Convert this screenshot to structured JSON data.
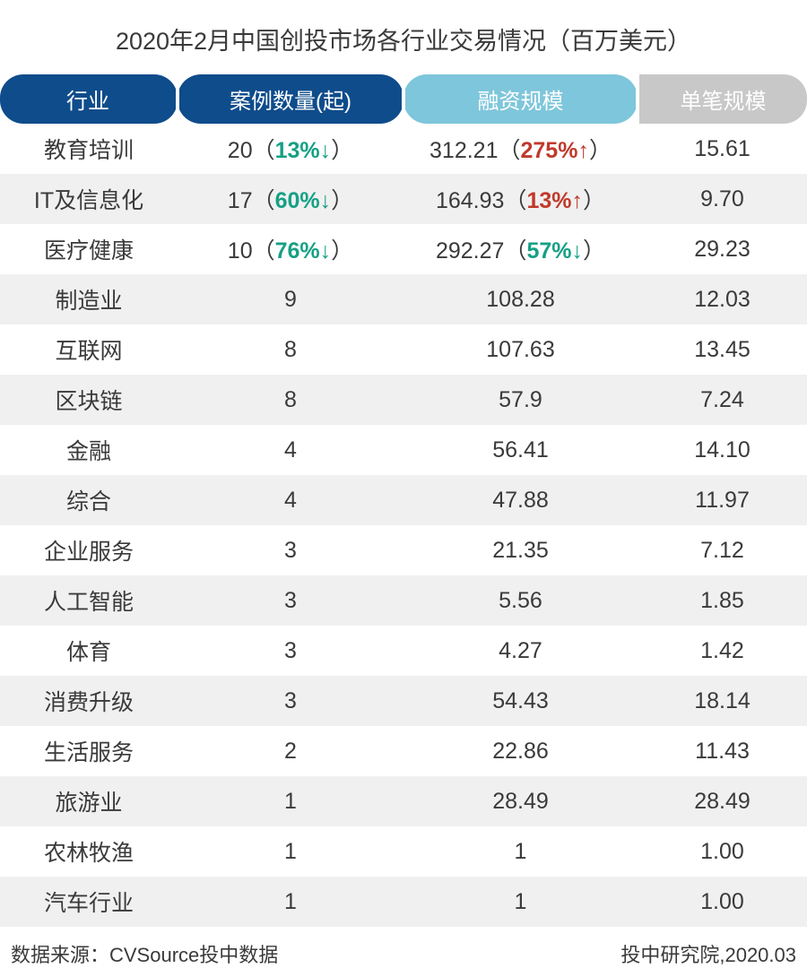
{
  "title": "2020年2月中国创投市场各行业交易情况（百万美元）",
  "columns": [
    {
      "label": "行业",
      "bg": "#0f4c8b",
      "pill": "both"
    },
    {
      "label": "案例数量(起)",
      "bg": "#0f4c8b",
      "pill": "both"
    },
    {
      "label": "融资规模",
      "bg": "#7ec6db",
      "pill": "both"
    },
    {
      "label": "单笔规模",
      "bg": "#c8c8c8",
      "pill": "right"
    }
  ],
  "header_text_color": "#ffffff",
  "header_fontsize": 24,
  "body_fontsize": 25,
  "title_fontsize": 27,
  "colors": {
    "text": "#3a3a3a",
    "stripe": "#f0f0f0",
    "up": "#c0392b",
    "down": "#16a085",
    "background": "#ffffff"
  },
  "column_widths_pct": [
    22,
    28,
    29,
    21
  ],
  "rows": [
    {
      "industry": "教育培训",
      "cases": "20",
      "cases_delta": {
        "pct": "13%",
        "dir": "down"
      },
      "amount": "312.21",
      "amount_delta": {
        "pct": "275%",
        "dir": "up"
      },
      "avg": "15.61"
    },
    {
      "industry": "IT及信息化",
      "cases": "17",
      "cases_delta": {
        "pct": "60%",
        "dir": "down"
      },
      "amount": "164.93",
      "amount_delta": {
        "pct": "13%",
        "dir": "up"
      },
      "avg": "9.70"
    },
    {
      "industry": "医疗健康",
      "cases": "10",
      "cases_delta": {
        "pct": "76%",
        "dir": "down"
      },
      "amount": "292.27",
      "amount_delta": {
        "pct": "57%",
        "dir": "down"
      },
      "avg": "29.23"
    },
    {
      "industry": "制造业",
      "cases": "9",
      "cases_delta": null,
      "amount": "108.28",
      "amount_delta": null,
      "avg": "12.03"
    },
    {
      "industry": "互联网",
      "cases": "8",
      "cases_delta": null,
      "amount": "107.63",
      "amount_delta": null,
      "avg": "13.45"
    },
    {
      "industry": "区块链",
      "cases": "8",
      "cases_delta": null,
      "amount": "57.9",
      "amount_delta": null,
      "avg": "7.24"
    },
    {
      "industry": "金融",
      "cases": "4",
      "cases_delta": null,
      "amount": "56.41",
      "amount_delta": null,
      "avg": "14.10"
    },
    {
      "industry": "综合",
      "cases": "4",
      "cases_delta": null,
      "amount": "47.88",
      "amount_delta": null,
      "avg": "11.97"
    },
    {
      "industry": "企业服务",
      "cases": "3",
      "cases_delta": null,
      "amount": "21.35",
      "amount_delta": null,
      "avg": "7.12"
    },
    {
      "industry": "人工智能",
      "cases": "3",
      "cases_delta": null,
      "amount": "5.56",
      "amount_delta": null,
      "avg": "1.85"
    },
    {
      "industry": "体育",
      "cases": "3",
      "cases_delta": null,
      "amount": "4.27",
      "amount_delta": null,
      "avg": "1.42"
    },
    {
      "industry": "消费升级",
      "cases": "3",
      "cases_delta": null,
      "amount": "54.43",
      "amount_delta": null,
      "avg": "18.14"
    },
    {
      "industry": "生活服务",
      "cases": "2",
      "cases_delta": null,
      "amount": "22.86",
      "amount_delta": null,
      "avg": "11.43"
    },
    {
      "industry": "旅游业",
      "cases": "1",
      "cases_delta": null,
      "amount": "28.49",
      "amount_delta": null,
      "avg": "28.49"
    },
    {
      "industry": "农林牧渔",
      "cases": "1",
      "cases_delta": null,
      "amount": "1",
      "amount_delta": null,
      "avg": "1.00"
    },
    {
      "industry": "汽车行业",
      "cases": "1",
      "cases_delta": null,
      "amount": "1",
      "amount_delta": null,
      "avg": "1.00"
    }
  ],
  "footer": {
    "source": "数据来源：CVSource投中数据",
    "credit": "投中研究院,2020.03"
  },
  "arrows": {
    "up": "↑",
    "down": "↓"
  }
}
